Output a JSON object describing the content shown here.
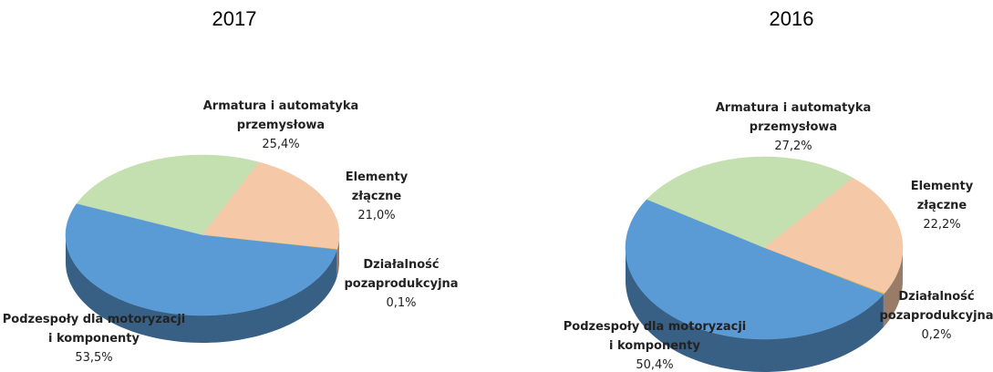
{
  "chart_data": [
    {
      "type": "pie",
      "title": "2017",
      "categories": [
        "Armatura i automatyka\nprzemysłowa",
        "Elementy\nzłączne",
        "Działalność\npozaprodukcyjna",
        "Podzespoły dla motoryzacji\ni komponenty"
      ],
      "values": [
        25.4,
        21.0,
        0.1,
        53.5
      ],
      "value_labels": [
        "25,4%",
        "21,0%",
        "0,1%",
        "53,5%"
      ],
      "colors": [
        "#c4dfb0",
        "#f5c8a8",
        "#e8b84a",
        "#5b9bd5"
      ]
    },
    {
      "type": "pie",
      "title": "2016",
      "categories": [
        "Armatura i automatyka\nprzemysłowa",
        "Elementy\nzłączne",
        "Działalność\npozaprodukcyjna",
        "Podzespoły dla motoryzacji\ni komponenty"
      ],
      "values": [
        27.2,
        22.2,
        0.2,
        50.4
      ],
      "value_labels": [
        "27,2%",
        "22,2%",
        "0,2%",
        "50,4%"
      ],
      "colors": [
        "#c4dfb0",
        "#f5c8a8",
        "#e8b84a",
        "#5b9bd5"
      ]
    }
  ]
}
